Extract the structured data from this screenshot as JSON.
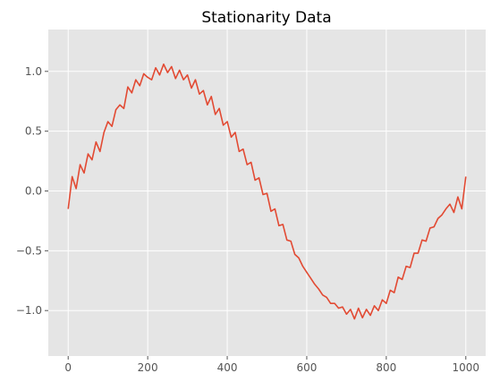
{
  "chart_data": {
    "type": "line",
    "title": "Stationarity Data",
    "xlabel": "",
    "ylabel": "",
    "xlim": [
      -50,
      1050
    ],
    "ylim": [
      -1.38,
      1.35
    ],
    "x_ticks": [
      0,
      200,
      400,
      600,
      800,
      1000
    ],
    "y_ticks": [
      -1.0,
      -0.5,
      0.0,
      0.5,
      1.0
    ],
    "x_tick_labels": [
      "0",
      "200",
      "400",
      "600",
      "800",
      "1000"
    ],
    "y_tick_labels": [
      "−1.0",
      "−0.5",
      "0.0",
      "0.5",
      "1.0"
    ],
    "grid": true,
    "legend": false,
    "series": [
      {
        "color": "#E24A33",
        "x": [
          0,
          10,
          20,
          30,
          40,
          50,
          60,
          70,
          80,
          90,
          100,
          110,
          120,
          130,
          140,
          150,
          160,
          170,
          180,
          190,
          200,
          210,
          220,
          230,
          240,
          250,
          260,
          270,
          280,
          290,
          300,
          310,
          320,
          330,
          340,
          350,
          360,
          370,
          380,
          390,
          400,
          410,
          420,
          430,
          440,
          450,
          460,
          470,
          480,
          490,
          500,
          510,
          520,
          530,
          540,
          550,
          560,
          570,
          580,
          590,
          600,
          610,
          620,
          630,
          640,
          650,
          660,
          670,
          680,
          690,
          700,
          710,
          720,
          730,
          740,
          750,
          760,
          770,
          780,
          790,
          800,
          810,
          820,
          830,
          840,
          850,
          860,
          870,
          880,
          890,
          900,
          910,
          920,
          930,
          940,
          950,
          960,
          970,
          980,
          990,
          1000
        ],
        "y": [
          -0.15,
          0.12,
          0.02,
          0.22,
          0.15,
          0.31,
          0.26,
          0.41,
          0.33,
          0.49,
          0.58,
          0.54,
          0.68,
          0.72,
          0.69,
          0.87,
          0.82,
          0.93,
          0.88,
          0.98,
          0.95,
          0.93,
          1.03,
          0.97,
          1.06,
          0.99,
          1.04,
          0.94,
          1.01,
          0.93,
          0.97,
          0.86,
          0.93,
          0.81,
          0.84,
          0.72,
          0.79,
          0.64,
          0.69,
          0.55,
          0.58,
          0.45,
          0.49,
          0.33,
          0.35,
          0.22,
          0.24,
          0.09,
          0.11,
          -0.03,
          -0.02,
          -0.17,
          -0.15,
          -0.29,
          -0.28,
          -0.41,
          -0.42,
          -0.53,
          -0.56,
          -0.63,
          -0.68,
          -0.73,
          -0.78,
          -0.82,
          -0.87,
          -0.89,
          -0.94,
          -0.94,
          -0.98,
          -0.97,
          -1.03,
          -0.99,
          -1.07,
          -0.98,
          -1.06,
          -0.99,
          -1.04,
          -0.96,
          -1.0,
          -0.91,
          -0.94,
          -0.83,
          -0.85,
          -0.72,
          -0.74,
          -0.63,
          -0.64,
          -0.52,
          -0.52,
          -0.41,
          -0.42,
          -0.31,
          -0.3,
          -0.23,
          -0.2,
          -0.15,
          -0.11,
          -0.18,
          -0.05,
          -0.15,
          0.12
        ]
      }
    ]
  }
}
